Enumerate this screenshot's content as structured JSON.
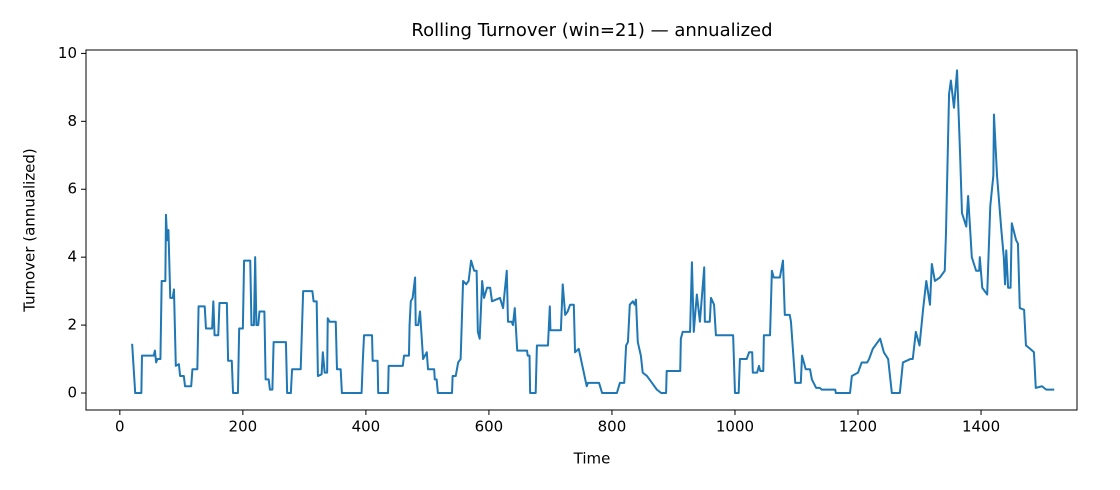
{
  "chart_data": {
    "type": "line",
    "title": "Rolling Turnover (win=21) — annualized",
    "xlabel": "Time",
    "ylabel": "Turnover (annualized)",
    "x": [
      20,
      25,
      35,
      36,
      55,
      57,
      59,
      61,
      66,
      68,
      74,
      75,
      77,
      79,
      82,
      86,
      88,
      91,
      96,
      98,
      104,
      106,
      116,
      118,
      126,
      128,
      138,
      140,
      150,
      152,
      154,
      160,
      162,
      174,
      176,
      182,
      184,
      192,
      194,
      200,
      202,
      212,
      214,
      218,
      220,
      222,
      225,
      227,
      235,
      237,
      242,
      244,
      248,
      250,
      270,
      272,
      278,
      280,
      294,
      298,
      313,
      315,
      320,
      322,
      328,
      330,
      333,
      337,
      338,
      341,
      351,
      353,
      359,
      361,
      393,
      395,
      397,
      410,
      411,
      419,
      420,
      436,
      437,
      460,
      462,
      470,
      471,
      473,
      476,
      480,
      481,
      485,
      488,
      493,
      499,
      501,
      511,
      512,
      515,
      517,
      540,
      541,
      546,
      550,
      554,
      558,
      563,
      567,
      571,
      576,
      580,
      582,
      585,
      589,
      592,
      597,
      602,
      605,
      618,
      623,
      629,
      631,
      637,
      639,
      642,
      646,
      662,
      663,
      666,
      667,
      676,
      678,
      696,
      699,
      700,
      717,
      720,
      724,
      728,
      732,
      738,
      740,
      746,
      759,
      761,
      779,
      784,
      808,
      813,
      820,
      823,
      826,
      829,
      834,
      837,
      839,
      842,
      847,
      850,
      857,
      865,
      873,
      880,
      888,
      889,
      911,
      912,
      915,
      927,
      930,
      933,
      938,
      943,
      950,
      951,
      959,
      961,
      966,
      969,
      997,
      1000,
      1006,
      1008,
      1019,
      1023,
      1028,
      1029,
      1036,
      1039,
      1041,
      1046,
      1047,
      1057,
      1060,
      1063,
      1073,
      1078,
      1081,
      1089,
      1091,
      1098,
      1107,
      1109,
      1115,
      1122,
      1125,
      1132,
      1138,
      1141,
      1163,
      1164,
      1187,
      1190,
      1200,
      1206,
      1215,
      1218,
      1224,
      1236,
      1242,
      1249,
      1255,
      1268,
      1273,
      1285,
      1289,
      1294,
      1300,
      1306,
      1311,
      1317,
      1320,
      1325,
      1333,
      1341,
      1343,
      1348,
      1351,
      1356,
      1361,
      1366,
      1369,
      1376,
      1379,
      1385,
      1392,
      1397,
      1398,
      1402,
      1410,
      1415,
      1420,
      1421,
      1426,
      1433,
      1437,
      1439,
      1441,
      1444,
      1448,
      1450,
      1457,
      1460,
      1463,
      1470,
      1473,
      1480,
      1486,
      1489,
      1499,
      1506,
      1519
    ],
    "series": [
      {
        "color": "#1f77b4",
        "values": [
          1.45,
          0,
          0,
          1.1,
          1.1,
          1.25,
          0.9,
          1.0,
          1.0,
          3.3,
          3.3,
          5.25,
          4.5,
          4.8,
          2.8,
          2.8,
          3.05,
          0.8,
          0.85,
          0.5,
          0.5,
          0.2,
          0.2,
          0.7,
          0.7,
          2.55,
          2.55,
          1.9,
          1.9,
          2.7,
          1.7,
          1.7,
          2.65,
          2.65,
          0.95,
          0.95,
          0,
          0,
          1.9,
          1.9,
          3.9,
          3.9,
          2.0,
          2.0,
          4.0,
          2.0,
          2.0,
          2.4,
          2.4,
          0.4,
          0.4,
          0.1,
          0.1,
          1.5,
          1.5,
          0,
          0,
          0.7,
          0.7,
          3.0,
          3.0,
          2.7,
          2.7,
          0.5,
          0.55,
          1.2,
          0.6,
          0.6,
          2.2,
          2.1,
          2.1,
          0.7,
          0.7,
          0,
          0,
          0.95,
          1.7,
          1.7,
          0.95,
          0.95,
          0,
          0,
          0.8,
          0.8,
          1.1,
          1.1,
          2.0,
          2.7,
          2.8,
          3.4,
          2.0,
          2.0,
          2.4,
          1.0,
          1.2,
          0.7,
          0.7,
          0.4,
          0.4,
          0,
          0,
          0.5,
          0.5,
          0.9,
          1.0,
          3.3,
          3.2,
          3.3,
          3.9,
          3.6,
          3.6,
          1.8,
          1.6,
          3.3,
          2.8,
          3.1,
          3.1,
          2.7,
          2.8,
          2.5,
          3.6,
          2.1,
          2.1,
          2.0,
          2.5,
          1.25,
          1.25,
          1.1,
          1.1,
          0,
          0,
          1.4,
          1.4,
          2.55,
          1.85,
          1.85,
          3.2,
          2.3,
          2.4,
          2.6,
          2.6,
          1.2,
          1.3,
          0.2,
          0.3,
          0.3,
          0,
          0,
          0.3,
          0.3,
          1.4,
          1.5,
          2.6,
          2.7,
          2.6,
          2.75,
          1.5,
          1.1,
          0.6,
          0.5,
          0.3,
          0.1,
          0,
          0,
          0.65,
          0.65,
          1.6,
          1.8,
          1.8,
          3.85,
          1.8,
          2.9,
          2.1,
          3.7,
          2.1,
          2.1,
          2.8,
          2.6,
          1.7,
          1.7,
          0,
          0,
          1.0,
          1.0,
          1.2,
          1.2,
          0.6,
          0.6,
          0.8,
          0.65,
          0.65,
          1.7,
          1.7,
          3.6,
          3.4,
          3.4,
          3.9,
          2.3,
          2.3,
          2.1,
          0.3,
          0.3,
          1.1,
          0.7,
          0.7,
          0.4,
          0.15,
          0.15,
          0.1,
          0.1,
          0,
          0,
          0.5,
          0.6,
          0.9,
          0.9,
          1.0,
          1.3,
          1.6,
          1.2,
          1.0,
          0,
          0,
          0.9,
          1.0,
          1.0,
          1.8,
          1.4,
          2.5,
          3.3,
          2.6,
          3.8,
          3.3,
          3.4,
          3.6,
          4.7,
          8.8,
          9.2,
          8.4,
          9.5,
          7.0,
          5.3,
          4.9,
          5.8,
          4.0,
          3.6,
          3.6,
          4.0,
          3.1,
          2.9,
          5.5,
          6.4,
          8.2,
          6.4,
          4.8,
          4.0,
          3.2,
          4.2,
          3.1,
          3.1,
          5.0,
          4.5,
          4.4,
          2.5,
          2.45,
          1.4,
          1.3,
          1.2,
          0.15,
          0.2,
          0.1,
          0.1
        ]
      }
    ],
    "xlim": [
      -55,
      1556
    ],
    "ylim": [
      -0.5,
      10.1
    ],
    "xticks": [
      0,
      200,
      400,
      600,
      800,
      1000,
      1200,
      1400
    ],
    "yticks": [
      0,
      2,
      4,
      6,
      8,
      10
    ]
  }
}
